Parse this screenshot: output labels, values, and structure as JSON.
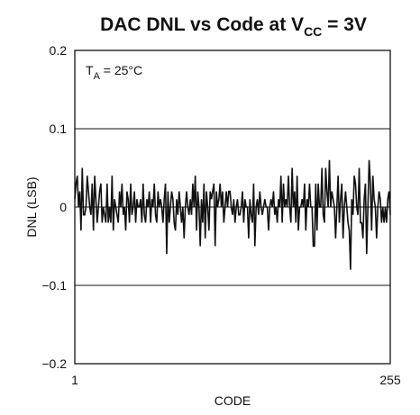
{
  "chart_data": {
    "type": "line",
    "title": {
      "main": "DAC DNL vs Code at V",
      "sub": "CC",
      "suffix": " = 3V"
    },
    "xlabel": "CODE",
    "ylabel": "DNL (LSB)",
    "xlim": [
      1,
      255
    ],
    "ylim": [
      -0.2,
      0.2
    ],
    "x_ticks": [
      "1",
      "255"
    ],
    "y_ticks": [
      "0.2",
      "0.1",
      "0",
      "−0.1",
      "−0.2"
    ],
    "grid": "horizontal",
    "annotation": {
      "main": "T",
      "sub": "A",
      "suffix": " = 25°C"
    },
    "series": [
      {
        "x_start": 1,
        "x_step": 1,
        "y": [
          0.01,
          0.03,
          0.04,
          0.0,
          0.02,
          -0.03,
          0.05,
          -0.01,
          -0.01,
          0.0,
          0.04,
          0.02,
          0.0,
          -0.01,
          0.03,
          -0.03,
          0.04,
          0.01,
          -0.02,
          0.0,
          0.02,
          0.03,
          -0.02,
          0.0,
          -0.01,
          -0.02,
          0.03,
          -0.02,
          0.0,
          -0.02,
          0.04,
          -0.03,
          0.01,
          0.0,
          -0.01,
          -0.02,
          0.02,
          0.0,
          0.03,
          -0.01,
          0.0,
          -0.03,
          0.02,
          0.01,
          -0.02,
          0.03,
          -0.01,
          0.0,
          0.02,
          -0.02,
          0.01,
          0.0,
          0.0,
          0.01,
          -0.02,
          0.03,
          -0.01,
          -0.02,
          0.01,
          0.0,
          0.02,
          -0.02,
          0.01,
          0.0,
          0.03,
          -0.01,
          -0.02,
          0.02,
          0.0,
          0.01,
          0.0,
          -0.02,
          0.01,
          0.03,
          -0.06,
          0.02,
          -0.02,
          0.0,
          0.02,
          0.01,
          -0.02,
          -0.03,
          0.01,
          -0.01,
          0.02,
          0.0,
          -0.02,
          0.0,
          -0.04,
          0.0,
          0.02,
          0.0,
          -0.01,
          0.01,
          -0.01,
          0.03,
          0.0,
          0.04,
          -0.03,
          0.02,
          0.0,
          -0.05,
          0.01,
          -0.02,
          0.03,
          -0.04,
          0.02,
          0.0,
          -0.03,
          0.02,
          0.01,
          0.02,
          0.03,
          -0.05,
          0.02,
          0.0,
          0.01,
          0.03,
          0.0,
          0.02,
          -0.02,
          0.0,
          0.02,
          0.0,
          0.02,
          0.02,
          0.0,
          -0.01,
          0.01,
          -0.02,
          0.0,
          0.01,
          -0.01,
          -0.01,
          0.0,
          0.02,
          -0.02,
          0.01,
          0.0,
          0.0,
          -0.04,
          0.01,
          -0.01,
          -0.02,
          0.03,
          -0.05,
          0.0,
          0.01,
          -0.01,
          0.02,
          0.0,
          -0.01,
          0.0,
          0.01,
          0.0,
          0.0,
          -0.03,
          0.0,
          0.01,
          0.0,
          0.02,
          -0.01,
          0.0,
          -0.02,
          0.01,
          0.0,
          0.04,
          -0.02,
          0.03,
          0.0,
          0.01,
          0.0,
          0.04,
          0.0,
          -0.02,
          0.05,
          0.0,
          0.02,
          -0.02,
          0.04,
          -0.03,
          0.0,
          0.0,
          0.01,
          0.0,
          0.03,
          -0.03,
          0.01,
          0.0,
          0.03,
          0.0,
          0.0,
          -0.05,
          -0.05,
          0.03,
          -0.03,
          0.03,
          0.0,
          0.0,
          0.05,
          -0.01,
          -0.02,
          0.05,
          0.02,
          0.0,
          0.06,
          0.0,
          0.02,
          0.01,
          0.0,
          -0.04,
          0.0,
          0.04,
          -0.02,
          0.01,
          0.03,
          -0.04,
          0.0,
          0.02,
          0.0,
          -0.02,
          -0.03,
          -0.08,
          0.01,
          -0.01,
          0.04,
          0.03,
          0.0,
          -0.01,
          0.05,
          -0.02,
          -0.02,
          -0.04,
          0.01,
          0.03,
          -0.06,
          0.0,
          0.06,
          0.03,
          -0.03,
          0.04,
          0.01,
          0.0,
          -0.04,
          0.0,
          0.02,
          0.01,
          -0.02,
          0.0,
          -0.02,
          0.0,
          -0.02,
          0.01,
          0.02,
          -0.01
        ]
      }
    ]
  }
}
